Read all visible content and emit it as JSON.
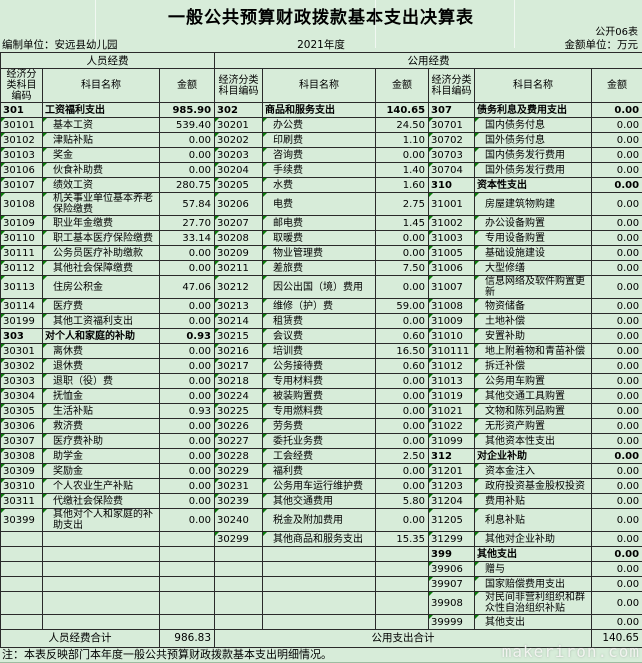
{
  "page": {
    "title": "一般公共预算财政拨款基本支出决算表",
    "sheet_label": "公开06表",
    "prepared_by": "编制单位：安远县幼儿园",
    "year": "2021年度",
    "unit": "金额单位：万元",
    "note": "注：本表反映部门本年度一般公共预算财政拨款基本支出明细情况。",
    "watermark": "makeriron.com"
  },
  "colors": {
    "background": "#d7ecd9",
    "border": "#2a2a2a",
    "flag_green": "#0a7a0a",
    "watermark_text": "#f6f6f4"
  },
  "table": {
    "group_headers": [
      {
        "label": "人员经费",
        "span": 3
      },
      {
        "label": "公用经费",
        "span": 6
      }
    ],
    "column_headers": [
      "经济分类科目编码",
      "科目名称",
      "金额",
      "经济分类科目编码",
      "科目名称",
      "金额",
      "经济分类科目编码",
      "科目名称",
      "金额"
    ],
    "rows": [
      [
        [
          "301",
          "工资福利支出",
          "985.90",
          1
        ],
        [
          "302",
          "商品和服务支出",
          "140.65",
          1
        ],
        [
          "307",
          "债务利息及费用支出",
          "0.00",
          1
        ]
      ],
      [
        [
          "30101",
          "基本工资",
          "539.40",
          0
        ],
        [
          "30201",
          "办公费",
          "24.50",
          0
        ],
        [
          "30701",
          "国内债务付息",
          "0.00",
          0
        ]
      ],
      [
        [
          "30102",
          "津贴补贴",
          "0.00",
          0
        ],
        [
          "30202",
          "印刷费",
          "1.10",
          0
        ],
        [
          "30702",
          "国外债务付息",
          "0.00",
          0
        ]
      ],
      [
        [
          "30103",
          "奖金",
          "0.00",
          0
        ],
        [
          "30203",
          "咨询费",
          "0.00",
          0
        ],
        [
          "30703",
          "国内债务发行费用",
          "0.00",
          0
        ]
      ],
      [
        [
          "30106",
          "伙食补助费",
          "0.00",
          0
        ],
        [
          "30204",
          "手续费",
          "1.40",
          0
        ],
        [
          "30704",
          "国外债务发行费用",
          "0.00",
          0
        ]
      ],
      [
        [
          "30107",
          "绩效工资",
          "280.75",
          0
        ],
        [
          "30205",
          "水费",
          "1.60",
          0
        ],
        [
          "310",
          "资本性支出",
          "0.00",
          1
        ]
      ],
      [
        [
          "30108",
          "机关事业单位基本养老保险缴费",
          "57.84",
          0
        ],
        [
          "30206",
          "电费",
          "2.75",
          0
        ],
        [
          "31001",
          "房屋建筑物购建",
          "0.00",
          0
        ]
      ],
      [
        [
          "30109",
          "职业年金缴费",
          "27.70",
          0
        ],
        [
          "30207",
          "邮电费",
          "1.45",
          0
        ],
        [
          "31002",
          "办公设备购置",
          "0.00",
          0
        ]
      ],
      [
        [
          "30110",
          "职工基本医疗保险缴费",
          "33.14",
          0
        ],
        [
          "30208",
          "取暖费",
          "0.00",
          0
        ],
        [
          "31003",
          "专用设备购置",
          "0.00",
          0
        ]
      ],
      [
        [
          "30111",
          "公务员医疗补助缴款",
          "0.00",
          0
        ],
        [
          "30209",
          "物业管理费",
          "0.00",
          0
        ],
        [
          "31005",
          "基础设施建设",
          "0.00",
          0
        ]
      ],
      [
        [
          "30112",
          "其他社会保障缴费",
          "0.00",
          0
        ],
        [
          "30211",
          "差旅费",
          "7.50",
          0
        ],
        [
          "31006",
          "大型修缮",
          "0.00",
          0
        ]
      ],
      [
        [
          "30113",
          "住房公积金",
          "47.06",
          0
        ],
        [
          "30212",
          "因公出国（境）费用",
          "0.00",
          0
        ],
        [
          "31007",
          "信息网络及软件购置更新",
          "0.00",
          0
        ]
      ],
      [
        [
          "30114",
          "医疗费",
          "0.00",
          0
        ],
        [
          "30213",
          "维修（护）费",
          "59.00",
          0
        ],
        [
          "31008",
          "物资储备",
          "0.00",
          0
        ]
      ],
      [
        [
          "30199",
          "其他工资福利支出",
          "0.00",
          0
        ],
        [
          "30214",
          "租赁费",
          "0.00",
          0
        ],
        [
          "31009",
          "土地补偿",
          "0.00",
          0
        ]
      ],
      [
        [
          "303",
          "对个人和家庭的补助",
          "0.93",
          1
        ],
        [
          "30215",
          "会议费",
          "0.60",
          0
        ],
        [
          "31010",
          "安置补助",
          "0.00",
          0
        ]
      ],
      [
        [
          "30301",
          "离休费",
          "0.00",
          0
        ],
        [
          "30216",
          "培训费",
          "16.50",
          0
        ],
        [
          "310111",
          "地上附着物和青苗补偿",
          "0.00",
          0
        ]
      ],
      [
        [
          "30302",
          "退休费",
          "0.00",
          0
        ],
        [
          "30217",
          "公务接待费",
          "0.60",
          0
        ],
        [
          "31012",
          "拆迁补偿",
          "0.00",
          0
        ]
      ],
      [
        [
          "30303",
          "退职（役）费",
          "0.00",
          0
        ],
        [
          "30218",
          "专用材料费",
          "0.00",
          0
        ],
        [
          "31013",
          "公务用车购置",
          "0.00",
          0
        ]
      ],
      [
        [
          "30304",
          "抚恤金",
          "0.00",
          0
        ],
        [
          "30224",
          "被装购置费",
          "0.00",
          0
        ],
        [
          "31019",
          "其他交通工具购置",
          "0.00",
          0
        ]
      ],
      [
        [
          "30305",
          "生活补贴",
          "0.93",
          0
        ],
        [
          "30225",
          "专用燃料费",
          "0.00",
          0
        ],
        [
          "31021",
          "文物和陈列品购置",
          "0.00",
          0
        ]
      ],
      [
        [
          "30306",
          "救济费",
          "0.00",
          0
        ],
        [
          "30226",
          "劳务费",
          "0.00",
          0
        ],
        [
          "31022",
          "无形资产购置",
          "0.00",
          0
        ]
      ],
      [
        [
          "30307",
          "医疗费补助",
          "0.00",
          0
        ],
        [
          "30227",
          "委托业务费",
          "0.00",
          0
        ],
        [
          "31099",
          "其他资本性支出",
          "0.00",
          0
        ]
      ],
      [
        [
          "30308",
          "助学金",
          "0.00",
          0
        ],
        [
          "30228",
          "工会经费",
          "2.50",
          0
        ],
        [
          "312",
          "对企业补助",
          "0.00",
          1
        ]
      ],
      [
        [
          "30309",
          "奖励金",
          "0.00",
          0
        ],
        [
          "30229",
          "福利费",
          "0.00",
          0
        ],
        [
          "31201",
          "资本金注入",
          "0.00",
          0
        ]
      ],
      [
        [
          "30310",
          "个人农业生产补贴",
          "0.00",
          0
        ],
        [
          "30231",
          "公务用车运行维护费",
          "0.00",
          0
        ],
        [
          "31203",
          "政府投资基金股权投资",
          "0.00",
          0
        ]
      ],
      [
        [
          "30311",
          "代缴社会保险费",
          "0.00",
          0
        ],
        [
          "30239",
          "其他交通费用",
          "5.80",
          0
        ],
        [
          "31204",
          "费用补贴",
          "0.00",
          0
        ]
      ],
      [
        [
          "30399",
          "其他对个人和家庭的补助支出",
          "0.00",
          0
        ],
        [
          "30240",
          "税金及附加费用",
          "0.00",
          0
        ],
        [
          "31205",
          "利息补贴",
          "0.00",
          0
        ]
      ],
      [
        [
          "",
          "",
          ""
        ],
        [
          "30299",
          "其他商品和服务支出",
          "15.35",
          0
        ],
        [
          "31299",
          "其他对企业补助",
          "0.00",
          0
        ]
      ],
      [
        [
          "",
          "",
          ""
        ],
        [
          "",
          "",
          ""
        ],
        [
          "399",
          "其他支出",
          "0.00",
          1
        ]
      ],
      [
        [
          "",
          "",
          ""
        ],
        [
          "",
          "",
          ""
        ],
        [
          "39906",
          "赠与",
          "0.00",
          0
        ]
      ],
      [
        [
          "",
          "",
          ""
        ],
        [
          "",
          "",
          ""
        ],
        [
          "39907",
          "国家赔偿费用支出",
          "0.00",
          0
        ]
      ],
      [
        [
          "",
          "",
          ""
        ],
        [
          "",
          "",
          ""
        ],
        [
          "39908",
          "对民间非营利组织和群众性自治组织补贴",
          "0.00",
          0
        ]
      ],
      [
        [
          "",
          "",
          ""
        ],
        [
          "",
          "",
          ""
        ],
        [
          "39999",
          "其他支出",
          "0.00",
          0
        ]
      ]
    ],
    "summary": {
      "left_label": "人员经费合计",
      "left_amount": "986.83",
      "right_label": "公用支出合计",
      "right_amount": "140.65"
    }
  }
}
